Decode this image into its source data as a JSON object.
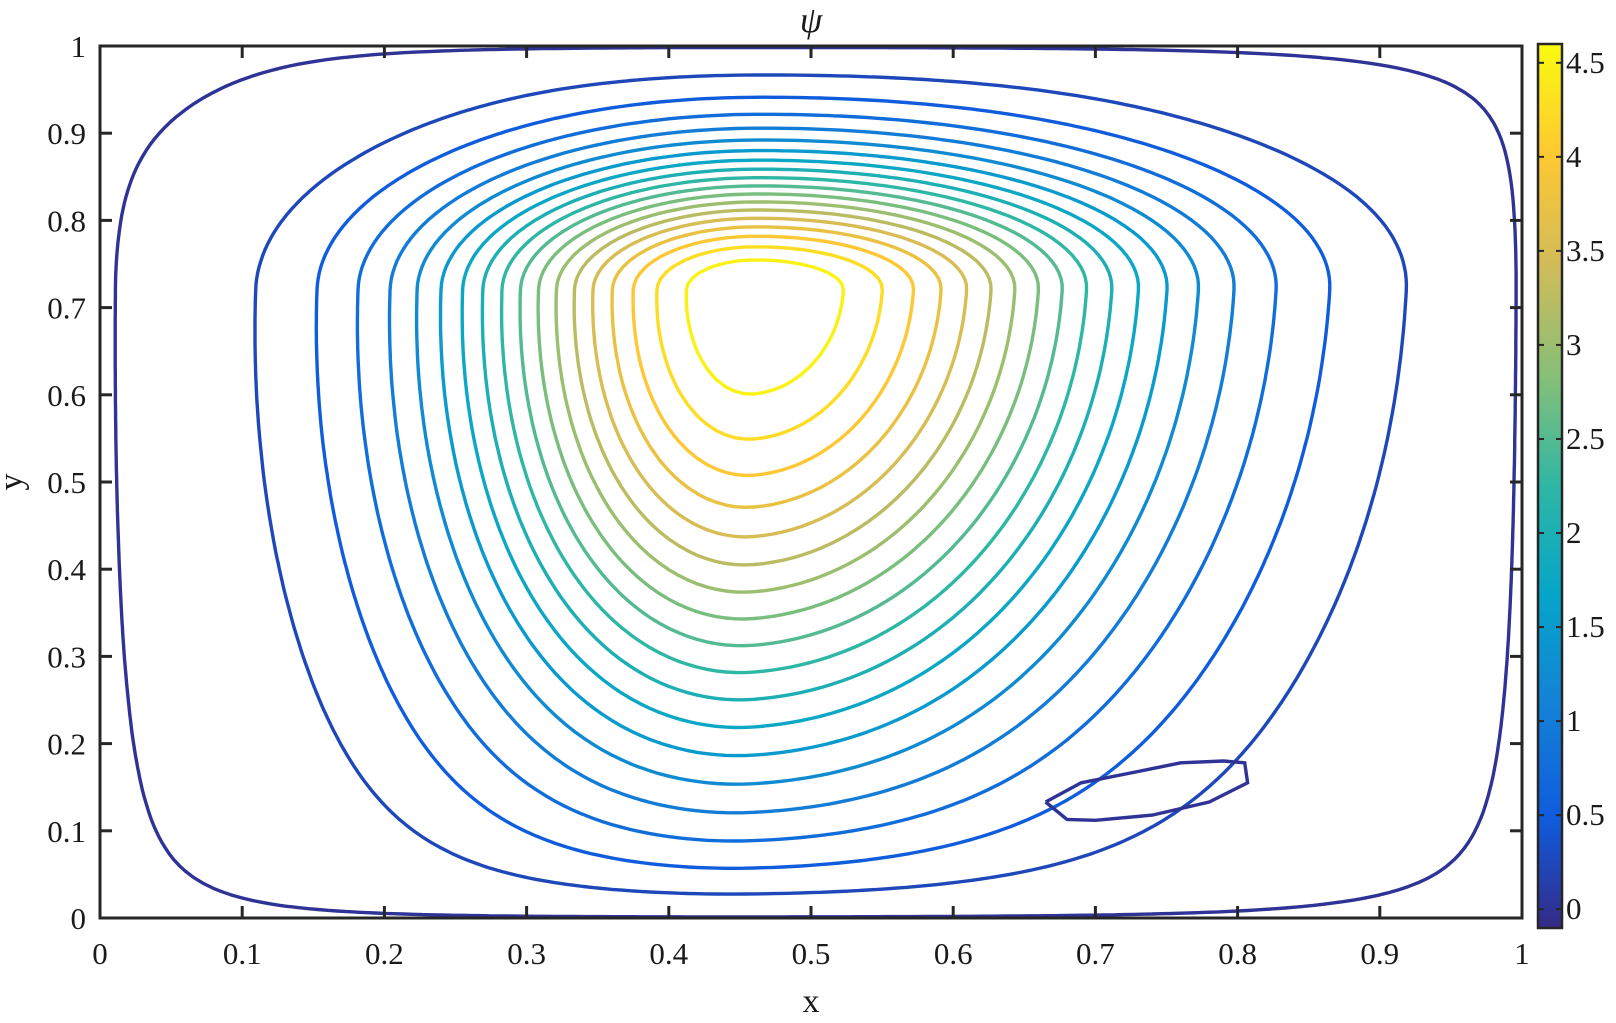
{
  "chart_data": {
    "type": "contour",
    "title": "ψ",
    "xlabel": "x",
    "ylabel": "y",
    "xlim": [
      0,
      1
    ],
    "ylim": [
      0,
      1
    ],
    "x_ticks": [
      "0",
      "0.1",
      "0.2",
      "0.3",
      "0.4",
      "0.5",
      "0.6",
      "0.7",
      "0.8",
      "0.9",
      "1"
    ],
    "y_ticks": [
      "0",
      "0.1",
      "0.2",
      "0.3",
      "0.4",
      "0.5",
      "0.6",
      "0.7",
      "0.8",
      "0.9",
      "1"
    ],
    "colorbar": {
      "colormap": "parula",
      "limits": [
        -0.1,
        4.6
      ],
      "tick_labels": [
        "0",
        "0.5",
        "1",
        "1.5",
        "2",
        "2.5",
        "3",
        "3.5",
        "4",
        "4.5"
      ],
      "colors": [
        "#352a87",
        "#0f5cdd",
        "#1481d6",
        "#06a4ca",
        "#2eb7a4",
        "#87bf77",
        "#d1bb59",
        "#fec832",
        "#f9fb0e"
      ]
    },
    "contour_levels": [
      0,
      0.25,
      0.5,
      0.75,
      1.0,
      1.25,
      1.5,
      1.75,
      2.0,
      2.25,
      2.5,
      2.75,
      3.0,
      3.25,
      3.5,
      3.75,
      4.0,
      4.25,
      4.5
    ],
    "vortex_center": [
      0.46,
      0.72
    ],
    "secondary_eddy": {
      "level": 0,
      "points": [
        [
          0.665,
          0.133
        ],
        [
          0.69,
          0.155
        ],
        [
          0.73,
          0.168
        ],
        [
          0.76,
          0.178
        ],
        [
          0.79,
          0.18
        ],
        [
          0.805,
          0.178
        ],
        [
          0.807,
          0.155
        ],
        [
          0.78,
          0.133
        ],
        [
          0.74,
          0.118
        ],
        [
          0.7,
          0.112
        ],
        [
          0.68,
          0.113
        ],
        [
          0.665,
          0.133
        ]
      ]
    }
  }
}
